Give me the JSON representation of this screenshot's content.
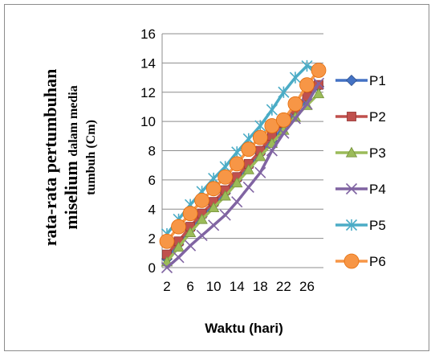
{
  "chart_data": {
    "type": "line",
    "title": "",
    "xlabel": "Waktu (hari)",
    "ylabel_line1": "rata-rata pertumbuhan",
    "ylabel_line2_main": "miselium ",
    "ylabel_line2_small": "dalam media",
    "ylabel_line3": "tumbuh (Cm)",
    "ylim": [
      0,
      16
    ],
    "yticks": [
      "0",
      "2",
      "4",
      "6",
      "8",
      "10",
      "12",
      "14",
      "16"
    ],
    "x": [
      2,
      4,
      6,
      8,
      10,
      12,
      14,
      16,
      18,
      20,
      22,
      24,
      26,
      28
    ],
    "xticks": [
      "2",
      "6",
      "10",
      "14",
      "18",
      "22",
      "26"
    ],
    "grid": true,
    "legend_position": "right",
    "series": [
      {
        "name": "P1",
        "color": "#4472c4",
        "marker": "diamond",
        "values": [
          0.6,
          1.6,
          2.6,
          3.5,
          4.3,
          5.1,
          6.0,
          6.9,
          7.8,
          8.7,
          9.6,
          10.6,
          11.5,
          12.4
        ]
      },
      {
        "name": "P2",
        "color": "#c0504d",
        "marker": "square",
        "values": [
          0.9,
          1.8,
          2.8,
          3.7,
          4.5,
          5.3,
          6.2,
          7.1,
          8.0,
          9.0,
          9.9,
          10.8,
          11.7,
          12.5
        ]
      },
      {
        "name": "P3",
        "color": "#9bbb59",
        "marker": "triangle",
        "values": [
          0.4,
          1.4,
          2.4,
          3.3,
          4.1,
          4.9,
          5.8,
          6.7,
          7.6,
          8.5,
          9.4,
          10.3,
          11.1,
          11.9
        ]
      },
      {
        "name": "P4",
        "color": "#8064a2",
        "marker": "x",
        "values": [
          0.0,
          0.7,
          1.5,
          2.2,
          2.9,
          3.6,
          4.5,
          5.5,
          6.5,
          8.0,
          9.2,
          10.2,
          11.2,
          12.6
        ]
      },
      {
        "name": "P5",
        "color": "#4bacc6",
        "marker": "star",
        "values": [
          2.3,
          3.3,
          4.3,
          5.2,
          6.1,
          6.9,
          7.9,
          8.8,
          9.7,
          10.8,
          12.0,
          13.0,
          13.8,
          13.5
        ]
      },
      {
        "name": "P6",
        "color": "#f79646",
        "marker": "circle",
        "values": [
          1.8,
          2.8,
          3.7,
          4.6,
          5.4,
          6.2,
          7.1,
          8.1,
          8.9,
          9.7,
          10.1,
          11.2,
          12.5,
          13.5
        ]
      }
    ]
  }
}
